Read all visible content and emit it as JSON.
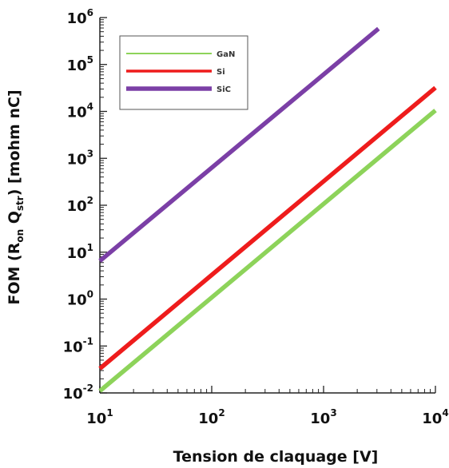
{
  "chart_data": {
    "type": "line",
    "xscale": "log",
    "yscale": "log",
    "xlim": [
      10,
      10000
    ],
    "ylim": [
      0.01,
      1000000
    ],
    "xlabel": "Tension de claquage [V]",
    "ylabel": {
      "prefix": "FOM (R",
      "sub1": "on",
      "mid": " Q",
      "sub2": "str",
      "suffix": ") [mohm nC]"
    },
    "x_ticks": [
      {
        "base": "10",
        "exp": "1"
      },
      {
        "base": "10",
        "exp": "2"
      },
      {
        "base": "10",
        "exp": "3"
      },
      {
        "base": "10",
        "exp": "4"
      }
    ],
    "y_ticks": [
      {
        "base": "10",
        "exp": "-2"
      },
      {
        "base": "10",
        "exp": "-1"
      },
      {
        "base": "10",
        "exp": "0"
      },
      {
        "base": "10",
        "exp": "1"
      },
      {
        "base": "10",
        "exp": "2"
      },
      {
        "base": "10",
        "exp": "3"
      },
      {
        "base": "10",
        "exp": "4"
      },
      {
        "base": "10",
        "exp": "5"
      },
      {
        "base": "10",
        "exp": "6"
      }
    ],
    "grid": false,
    "legend_position": "top-left",
    "series": [
      {
        "name": "GaN",
        "color": "#8dd35a",
        "x": [
          10,
          10000
        ],
        "y": [
          0.011,
          10500
        ],
        "width": "thin-in-legend"
      },
      {
        "name": "Si",
        "color": "#ee1c1c",
        "x": [
          10,
          10000
        ],
        "y": [
          0.033,
          32000
        ],
        "width": "medium-in-legend"
      },
      {
        "name": "SiC",
        "color": "#7b3fa6",
        "x": [
          10,
          3100
        ],
        "y": [
          6.5,
          580000
        ],
        "width": "thick-in-legend"
      }
    ]
  }
}
